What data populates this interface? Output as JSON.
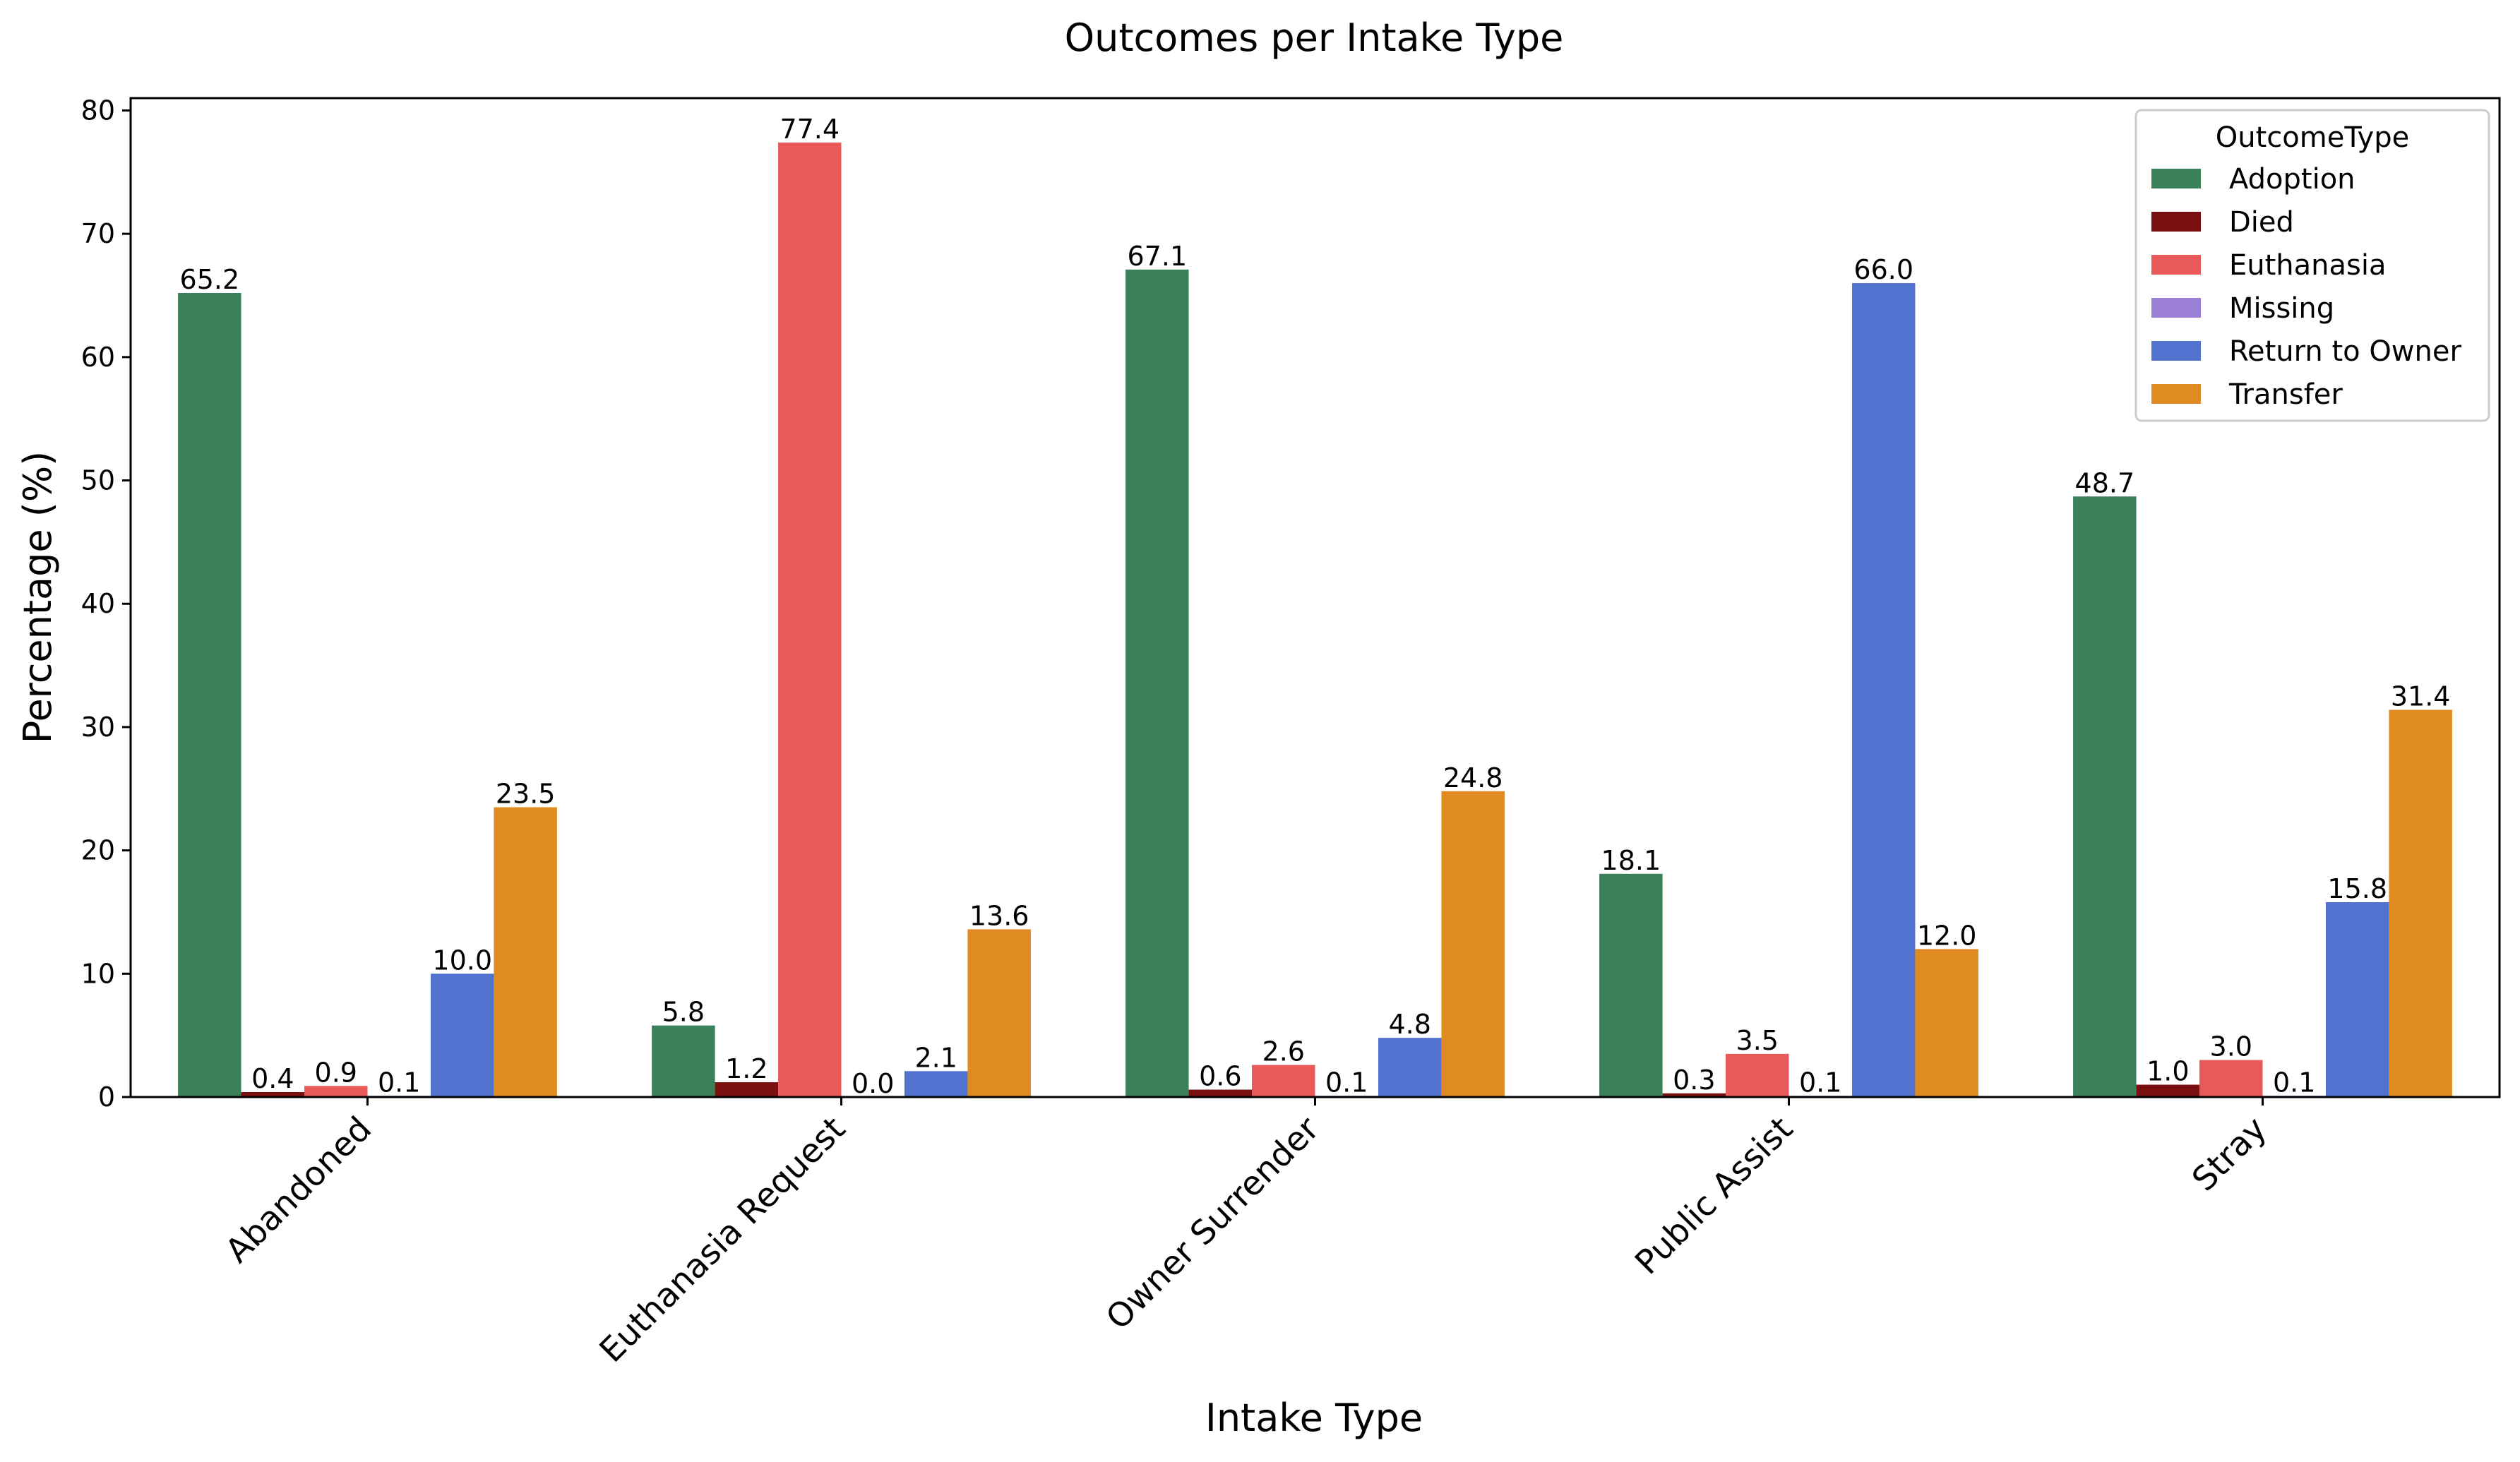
{
  "chart_data": {
    "type": "bar",
    "title": "Outcomes per Intake Type",
    "xlabel": "Intake Type",
    "ylabel": "Percentage (%)",
    "ylim": [
      0,
      81
    ],
    "yticks": [
      "0",
      "10",
      "20",
      "30",
      "40",
      "50",
      "60",
      "70",
      "80"
    ],
    "categories": [
      "Abandoned",
      "Euthanasia Request",
      "Owner Surrender",
      "Public Assist",
      "Stray"
    ],
    "legend": {
      "title": "OutcomeType",
      "placement": "upper right"
    },
    "grid": false,
    "series": [
      {
        "name": "Adoption",
        "color": "#3a8059",
        "values": [
          65.2,
          5.8,
          67.1,
          18.1,
          48.7
        ]
      },
      {
        "name": "Died",
        "color": "#7b1010",
        "values": [
          0.4,
          1.2,
          0.6,
          0.3,
          1.0
        ]
      },
      {
        "name": "Euthanasia",
        "color": "#e85a5a",
        "values": [
          0.9,
          77.4,
          2.6,
          3.5,
          3.0
        ]
      },
      {
        "name": "Missing",
        "color": "#9b7fd6",
        "values": [
          0.1,
          0.0,
          0.1,
          0.1,
          0.1
        ]
      },
      {
        "name": "Return to Owner",
        "color": "#5272cf",
        "values": [
          10.0,
          2.1,
          4.8,
          66.0,
          15.8
        ]
      },
      {
        "name": "Transfer",
        "color": "#e08a22",
        "values": [
          23.5,
          13.6,
          24.8,
          12.0,
          31.4
        ]
      }
    ]
  }
}
